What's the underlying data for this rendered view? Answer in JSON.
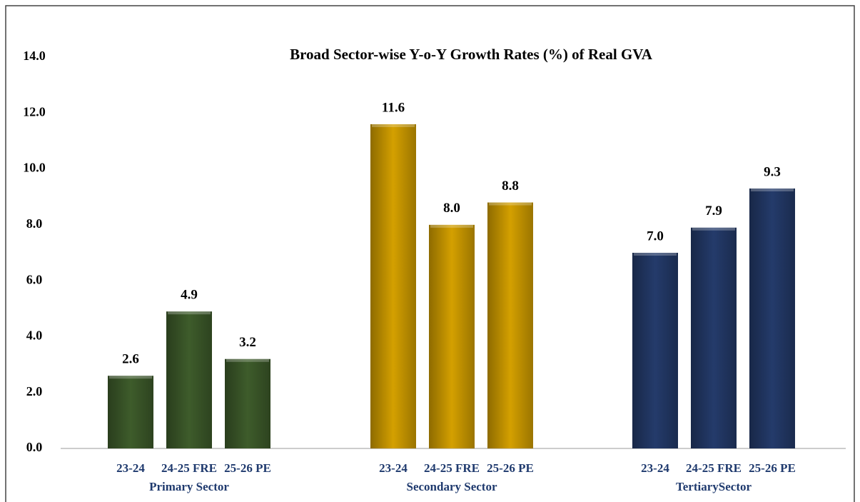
{
  "chart_data": {
    "type": "bar",
    "title": "Broad Sector-wise Y-o-Y Growth Rates (%) of Real GVA",
    "groups": [
      {
        "name": "Primary Sector",
        "color": "#3e5c2b",
        "categories": [
          "23-24",
          "24-25  FRE",
          "25-26 PE"
        ],
        "values": [
          2.6,
          4.9,
          3.2
        ],
        "value_labels": [
          "2.6",
          "4.9",
          "3.2"
        ]
      },
      {
        "name": "Secondary Sector",
        "color": "#d4a000",
        "categories": [
          "23-24",
          "24-25 FRE",
          "25-26 PE"
        ],
        "values": [
          11.6,
          8.0,
          8.8
        ],
        "value_labels": [
          "11.6",
          "8.0",
          "8.8"
        ]
      },
      {
        "name": "TertiarySector",
        "color": "#243b6b",
        "categories": [
          "23-24",
          "24-25 FRE",
          "25-26 PE"
        ],
        "values": [
          7.0,
          7.9,
          9.3
        ],
        "value_labels": [
          "7.0",
          "7.9",
          "9.3"
        ]
      }
    ],
    "ylim": [
      0,
      14
    ],
    "yticks": [
      {
        "value": 0,
        "label": "0.0"
      },
      {
        "value": 2,
        "label": "2.0"
      },
      {
        "value": 4,
        "label": "4.0"
      },
      {
        "value": 6,
        "label": "6.0"
      },
      {
        "value": 8,
        "label": "8.0"
      },
      {
        "value": 10,
        "label": "10.0"
      },
      {
        "value": 12,
        "label": "12.0"
      },
      {
        "value": 14,
        "label": "14.0"
      }
    ],
    "grid": false
  }
}
